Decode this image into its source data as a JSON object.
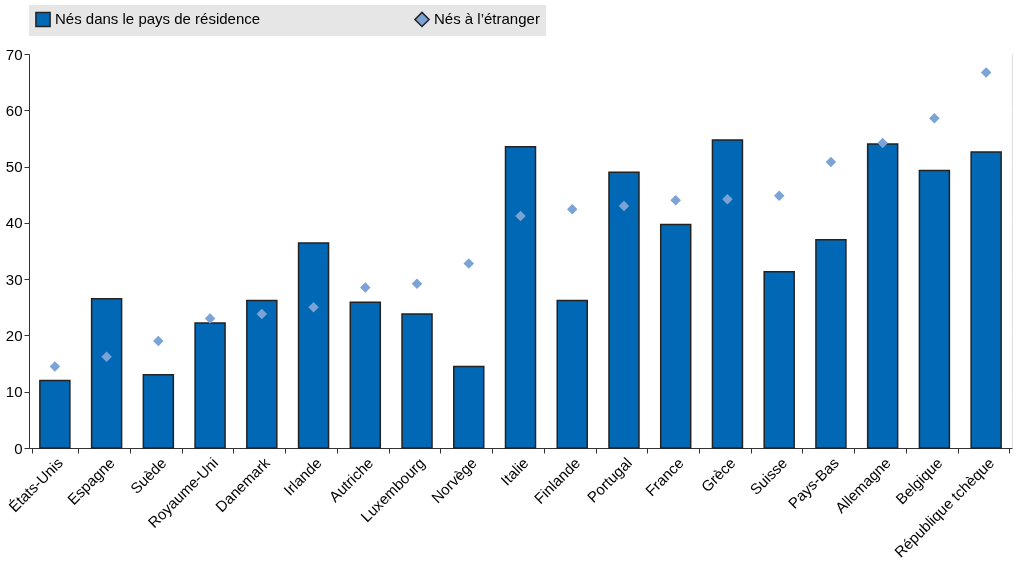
{
  "chart_data": {
    "type": "bar",
    "categories": [
      "États-Unis",
      "Espagne",
      "Suède",
      "Royaume-Uni",
      "Danemark",
      "Irlande",
      "Autriche",
      "Luxembourg",
      "Norvège",
      "Italie",
      "Finlande",
      "Portugal",
      "France",
      "Grèce",
      "Suisse",
      "Pays-Bas",
      "Allemagne",
      "Belgique",
      "République tchèque"
    ],
    "series": [
      {
        "name": "Nés dans le pays de résidence",
        "color": "#0068b5",
        "values": [
          12,
          26.5,
          13,
          22.2,
          26.2,
          36.4,
          25.9,
          23.8,
          14.5,
          53.5,
          26.2,
          49,
          39.7,
          54.7,
          31.3,
          37,
          54,
          49.3,
          52.6
        ]
      },
      {
        "name": "Nés à l’étranger",
        "type": "scatter",
        "marker": "diamond",
        "color": "#7ba3d6",
        "values": [
          14.5,
          16.2,
          19,
          23,
          23.8,
          25,
          28.5,
          29.2,
          32.8,
          41.2,
          42.4,
          43,
          44,
          44.2,
          44.8,
          50.8,
          54.2,
          58.6,
          66.7
        ]
      }
    ],
    "ylim": [
      0,
      70
    ],
    "yticks": [
      0,
      10,
      20,
      30,
      40,
      50,
      60,
      70
    ],
    "grid": true,
    "legend": "top"
  }
}
